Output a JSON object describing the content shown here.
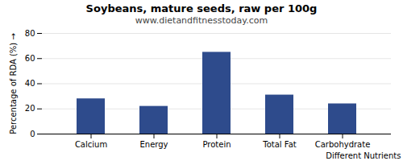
{
  "chart_data": {
    "type": "bar",
    "title": "Soybeans, mature seeds, raw per 100g",
    "subtitle": "www.dietandfitnesstoday.com",
    "xlabel": "Different Nutrients",
    "ylabel": "Percentage of RDA (%)",
    "categories": [
      "Calcium",
      "Energy",
      "Protein",
      "Total Fat",
      "Carbohydrate"
    ],
    "values": [
      28,
      22,
      65,
      31,
      24
    ],
    "color": "#2e4b8c",
    "ylim": [
      0,
      80
    ],
    "yticks": [
      0,
      20,
      40,
      60,
      80
    ],
    "grid": true
  }
}
